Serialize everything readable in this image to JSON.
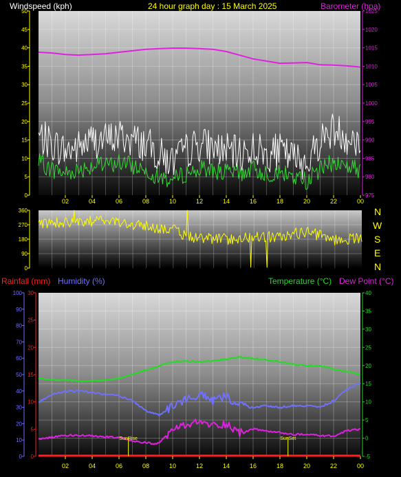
{
  "colors": {
    "wind": "#ffffff",
    "gust_line": "#ffffff",
    "avg_line": "#33dd33",
    "barometer": "#e020e0",
    "direction": "#ffff00",
    "title": "#ffff00",
    "rainfall": "#ff2020",
    "humidity": "#7070ff",
    "temperature": "#20dd20",
    "dewpoint": "#e020e0",
    "axis_tick": "#ffff00"
  },
  "header": {
    "wind_label": "Windspeed (kph)",
    "title": "24 hour graph day : 15 March 2025",
    "baro_label": "Barometer (hpa)"
  },
  "lower_header": {
    "rain_label": "Rainfall (mm)",
    "humidity_label": "Humidity (%)",
    "temp_label": "Temperature (°C)",
    "dew_label": "Dew Point (°C)"
  },
  "compass": [
    "N",
    "W",
    "S",
    "E",
    "N"
  ],
  "markers": {
    "sunrise": "SunRise",
    "sunset": "SunSet"
  },
  "chart_data": [
    {
      "type": "line",
      "name": "wind-barometer",
      "x_ticks": [
        "02",
        "04",
        "06",
        "08",
        "10",
        "12",
        "14",
        "16",
        "18",
        "20",
        "22",
        "00"
      ],
      "y_left_ticks": [
        0,
        5,
        10,
        15,
        20,
        25,
        30,
        35,
        40,
        45,
        50
      ],
      "y_left_range": [
        0,
        50
      ],
      "y_right_ticks": [
        975,
        980,
        985,
        990,
        995,
        1000,
        1005,
        1010,
        1015,
        1020,
        1025
      ],
      "y_right_range": [
        975,
        1025
      ],
      "series": [
        {
          "key": "barometer",
          "axis": "right",
          "x": [
            0,
            1,
            2,
            3,
            4,
            5,
            6,
            7,
            8,
            9,
            10,
            11,
            12,
            13,
            14,
            15,
            16,
            17,
            18,
            19,
            20,
            21,
            22,
            23,
            24
          ],
          "values": [
            1013.8,
            1013.6,
            1013.2,
            1013.0,
            1013.2,
            1013.4,
            1013.8,
            1014.2,
            1014.6,
            1014.8,
            1014.9,
            1014.9,
            1014.8,
            1014.6,
            1014.0,
            1013.0,
            1012.0,
            1011.4,
            1010.8,
            1010.9,
            1011.0,
            1010.4,
            1010.3,
            1010.1,
            1009.8
          ]
        },
        {
          "key": "gust",
          "axis": "left",
          "x": [
            0,
            1,
            2,
            3,
            4,
            5,
            6,
            7,
            8,
            9,
            10,
            11,
            12,
            13,
            14,
            15,
            16,
            17,
            18,
            19,
            20,
            21,
            22,
            23,
            24
          ],
          "values": [
            16,
            14,
            12,
            13,
            15,
            15,
            16,
            15,
            14,
            11,
            9,
            12,
            14,
            13,
            12,
            11,
            13,
            11,
            12,
            10,
            9,
            15,
            18,
            16,
            14
          ]
        },
        {
          "key": "average",
          "axis": "left",
          "x": [
            0,
            1,
            2,
            3,
            4,
            5,
            6,
            7,
            8,
            9,
            10,
            11,
            12,
            13,
            14,
            15,
            16,
            17,
            18,
            19,
            20,
            21,
            22,
            23,
            24
          ],
          "values": [
            9,
            7,
            6,
            7,
            8,
            8,
            9,
            8,
            7,
            5,
            4,
            6,
            7,
            7,
            6,
            6,
            7,
            6,
            6,
            5,
            4,
            7,
            9,
            8,
            7
          ]
        }
      ]
    },
    {
      "type": "scatter",
      "name": "wind-direction",
      "x_ticks": [
        "02",
        "04",
        "06",
        "08",
        "10",
        "12",
        "14",
        "16",
        "18",
        "20",
        "22",
        "00"
      ],
      "y_ticks": [
        0,
        90,
        180,
        270,
        360
      ],
      "y_range": [
        0,
        360
      ],
      "series": [
        {
          "key": "direction",
          "x": [
            0,
            1,
            2,
            3,
            4,
            5,
            6,
            7,
            8,
            9,
            10,
            11,
            12,
            13,
            14,
            15,
            16,
            17,
            18,
            19,
            20,
            21,
            22,
            23,
            24
          ],
          "values": [
            275,
            290,
            285,
            280,
            295,
            300,
            285,
            270,
            260,
            250,
            240,
            195,
            190,
            185,
            180,
            185,
            200,
            195,
            190,
            215,
            225,
            200,
            175,
            180,
            195
          ]
        }
      ]
    },
    {
      "type": "line",
      "name": "rain-humidity-temperature-dewpoint",
      "x_ticks": [
        "02",
        "04",
        "06",
        "08",
        "10",
        "12",
        "14",
        "16",
        "18",
        "20",
        "22",
        "00"
      ],
      "y_rain_ticks": [
        0,
        5,
        10,
        15,
        20,
        25,
        30
      ],
      "y_rain_range": [
        0,
        30
      ],
      "y_hum_ticks": [
        0,
        10,
        20,
        30,
        40,
        50,
        60,
        70,
        80,
        90,
        100
      ],
      "y_hum_range": [
        0,
        100
      ],
      "y_temp_ticks": [
        -5,
        0,
        5,
        10,
        15,
        20,
        25,
        30,
        35,
        40
      ],
      "y_temp_range": [
        -5,
        40
      ],
      "series": [
        {
          "key": "temperature",
          "axis": "temp",
          "x": [
            0,
            1,
            2,
            3,
            4,
            5,
            6,
            7,
            8,
            9,
            10,
            11,
            12,
            13,
            14,
            15,
            16,
            17,
            18,
            19,
            20,
            21,
            22,
            23,
            24
          ],
          "values": [
            16.5,
            16,
            16,
            15.7,
            15.8,
            16,
            16.5,
            17.5,
            18.7,
            20,
            21,
            21.3,
            21,
            21.3,
            21.7,
            22.3,
            22,
            21.5,
            21,
            20.3,
            20,
            20,
            19,
            18.3,
            17.5
          ]
        },
        {
          "key": "humidity",
          "axis": "humidity",
          "x": [
            0,
            1,
            2,
            3,
            4,
            5,
            6,
            7,
            8,
            9,
            10,
            11,
            12,
            13,
            14,
            15,
            16,
            17,
            18,
            19,
            20,
            21,
            22,
            23,
            24
          ],
          "values": [
            33,
            38,
            40,
            40,
            39,
            38,
            37,
            34,
            28,
            25,
            31,
            35,
            38,
            34,
            37,
            31,
            30,
            31,
            30,
            31,
            31,
            30,
            34,
            41,
            45
          ]
        },
        {
          "key": "dewpoint",
          "axis": "temp",
          "x": [
            0,
            1,
            2,
            3,
            4,
            5,
            6,
            7,
            8,
            9,
            10,
            11,
            12,
            13,
            14,
            15,
            16,
            17,
            18,
            19,
            20,
            21,
            22,
            23,
            24
          ],
          "values": [
            -0.2,
            0.3,
            0.8,
            0.8,
            0.6,
            0.4,
            0.2,
            -0.8,
            -1.3,
            -1.5,
            2.5,
            3.5,
            4.5,
            3.5,
            4,
            1.5,
            2.5,
            2,
            1.5,
            1,
            1,
            0.8,
            0.5,
            2,
            2.5
          ]
        },
        {
          "key": "rainfall",
          "axis": "rain",
          "x": [
            0,
            24
          ],
          "values": [
            0,
            0
          ]
        }
      ]
    }
  ]
}
